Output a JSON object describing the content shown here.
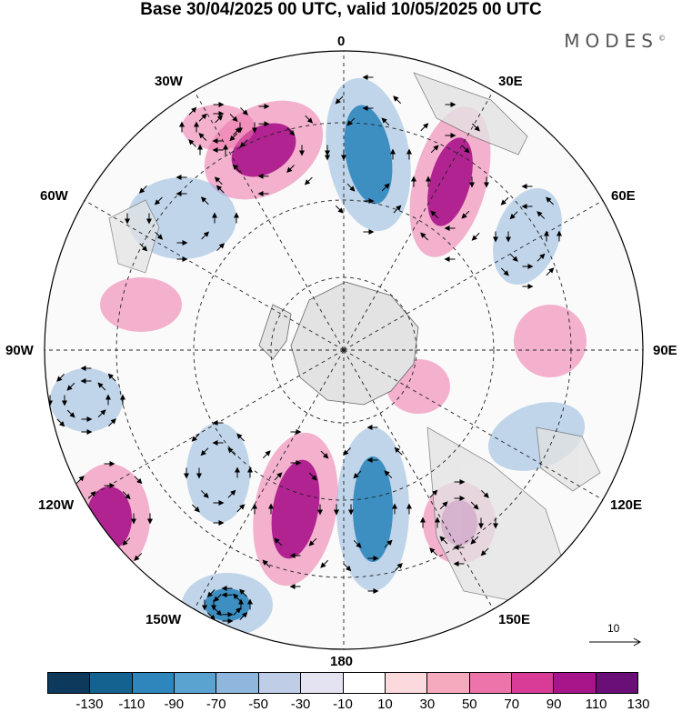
{
  "title": "Base 30/04/2025 00 UTC, valid 10/05/2025 00 UTC",
  "brand": "MODES",
  "brand_mark": "©",
  "longitude_labels": {
    "top": "0",
    "top_right": "30E",
    "right_upper": "60E",
    "right": "90E",
    "right_lower": "120E",
    "bottom_right": "150E",
    "bottom": "180",
    "bottom_left": "150W",
    "left_lower": "120W",
    "left": "90W",
    "left_upper": "60W",
    "top_left": "30W"
  },
  "reference_vector": "10",
  "colorbar": {
    "colors": [
      "#0d3a5c",
      "#14628f",
      "#2f86bd",
      "#5aa2cf",
      "#8fb6dc",
      "#bfcde6",
      "#e4e3f1",
      "#ffffff",
      "#fbd9dd",
      "#f6aabd",
      "#ec74aa",
      "#d83c97",
      "#a8148a",
      "#6a0e78"
    ],
    "tick_labels": [
      "-130",
      "-110",
      "-90",
      "-70",
      "-50",
      "-30",
      "-10",
      "10",
      "30",
      "50",
      "70",
      "90",
      "110",
      "130"
    ]
  },
  "projection": "south polar stereographic",
  "field_colors": {
    "positive_strong": "#a8148a",
    "positive": "#ec74aa",
    "negative_strong": "#2f86bd",
    "negative": "#8fb6dc",
    "land": "#e3e3e3"
  }
}
